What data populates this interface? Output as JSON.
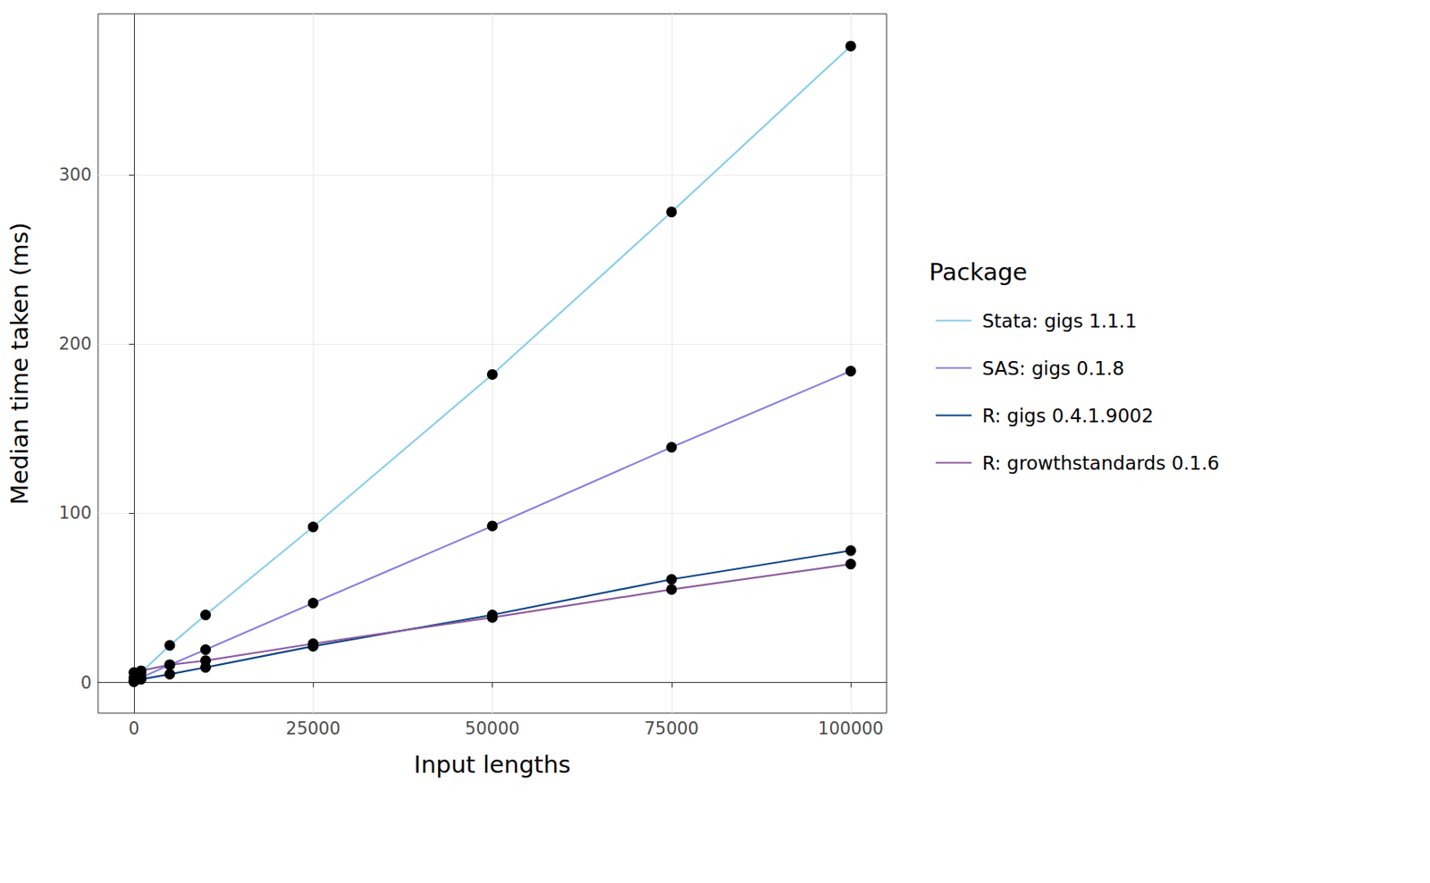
{
  "chart_data": {
    "type": "line",
    "x_label": "Input lengths",
    "y_label": "Median time taken (ms)",
    "legend_title": "Package",
    "legend": "right",
    "grid": true,
    "marker": "circle",
    "x": [
      1,
      1000,
      5000,
      10000,
      25000,
      50000,
      75000,
      100000
    ],
    "xlim": [
      -5000,
      105000
    ],
    "xticks": [
      0,
      25000,
      50000,
      75000,
      100000
    ],
    "ylim": [
      -18,
      395
    ],
    "yticks": [
      0,
      100,
      200,
      300
    ],
    "series": [
      {
        "name": "Stata: gigs 1.1.1",
        "color": "#87ceeb",
        "values": [
          3,
          6,
          22,
          40,
          92,
          182,
          278,
          376
        ]
      },
      {
        "name": "SAS: gigs 0.1.8",
        "color": "#8682dc",
        "values": [
          1,
          3,
          10.5,
          19.5,
          47,
          92.5,
          139,
          184
        ]
      },
      {
        "name": "R: gigs 0.4.1.9002",
        "color": "#0a4585",
        "values": [
          0.5,
          2,
          5,
          9,
          21.5,
          40,
          61,
          78
        ]
      },
      {
        "name": "R: growthstandards 0.1.6",
        "color": "#8f5c9e",
        "values": [
          6,
          7,
          10.5,
          13,
          23,
          38.5,
          55,
          70
        ]
      }
    ]
  }
}
